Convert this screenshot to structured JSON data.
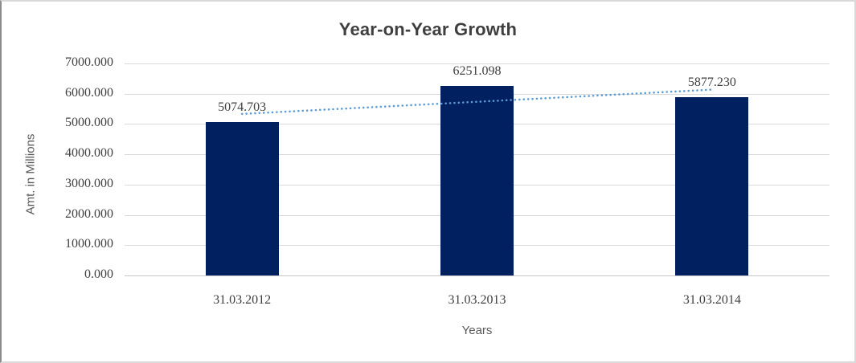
{
  "chart_data": {
    "type": "bar",
    "title": "Year-on-Year Growth",
    "xlabel": "Years",
    "ylabel": "Amt. in Millions",
    "categories": [
      "31.03.2012",
      "31.03.2013",
      "31.03.2014"
    ],
    "values": [
      5074.703,
      6251.098,
      5877.23
    ],
    "data_labels": [
      "5074.703",
      "6251.098",
      "5877.230"
    ],
    "ylim": [
      0,
      7000
    ],
    "ytick_labels": [
      "0.000",
      "1000.000",
      "2000.000",
      "3000.000",
      "4000.000",
      "5000.000",
      "6000.000",
      "7000.000"
    ],
    "grid": true,
    "legend": "none",
    "trendline": {
      "type": "linear",
      "style": "dotted"
    },
    "colors": {
      "bar": "#002060",
      "trendline": "#5b9bd5",
      "gridline": "#d9d9d9",
      "axis_line": "#c6c6c6",
      "tick_text": "#404040",
      "title_text": "#3f3f3f",
      "axis_title_text": "#595959"
    }
  }
}
